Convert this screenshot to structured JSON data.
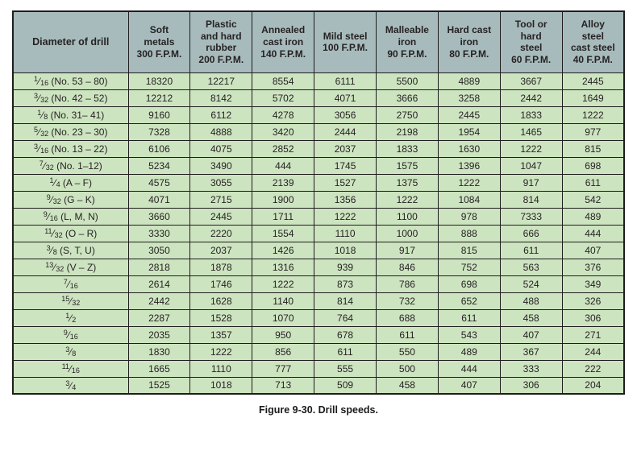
{
  "caption": "Figure 9-30. Drill speeds.",
  "colors": {
    "header_bg": "#a7bbbc",
    "row_bg": "#cde4c0",
    "border": "#1f1c1d",
    "text": "#262223",
    "page_bg": "#ffffff"
  },
  "table": {
    "columns": [
      {
        "label": "Diameter of drill"
      },
      {
        "label": "Soft\nmetals\n300 F.P.M."
      },
      {
        "label": "Plastic\nand hard\nrubber\n200 F.P.M."
      },
      {
        "label": "Annealed\ncast iron\n140 F.P.M."
      },
      {
        "label": "Mild steel\n100 F.P.M."
      },
      {
        "label": "Malleable\niron\n90 F.P.M."
      },
      {
        "label": "Hard cast\niron\n80 F.P.M."
      },
      {
        "label": "Tool or\nhard\nsteel\n60 F.P.M."
      },
      {
        "label": "Alloy\nsteel\ncast steel\n40 F.P.M."
      }
    ],
    "rows": [
      {
        "diameter": {
          "num": "1",
          "den": "16",
          "suffix": "(No. 53 – 80)"
        },
        "values": [
          "18320",
          "12217",
          "8554",
          "6111",
          "5500",
          "4889",
          "3667",
          "2445"
        ]
      },
      {
        "diameter": {
          "num": "3",
          "den": "32",
          "suffix": "(No. 42 – 52)"
        },
        "values": [
          "12212",
          "8142",
          "5702",
          "4071",
          "3666",
          "3258",
          "2442",
          "1649"
        ]
      },
      {
        "diameter": {
          "num": "1",
          "den": "8",
          "suffix": "(No. 31– 41)"
        },
        "values": [
          "9160",
          "6112",
          "4278",
          "3056",
          "2750",
          "2445",
          "1833",
          "1222"
        ]
      },
      {
        "diameter": {
          "num": "5",
          "den": "32",
          "suffix": "(No. 23 – 30)"
        },
        "values": [
          "7328",
          "4888",
          "3420",
          "2444",
          "2198",
          "1954",
          "1465",
          "977"
        ]
      },
      {
        "diameter": {
          "num": "3",
          "den": "16",
          "suffix": "(No. 13 – 22)"
        },
        "values": [
          "6106",
          "4075",
          "2852",
          "2037",
          "1833",
          "1630",
          "1222",
          "815"
        ]
      },
      {
        "diameter": {
          "num": "7",
          "den": "32",
          "suffix": "(No. 1–12)"
        },
        "values": [
          "5234",
          "3490",
          "444",
          "1745",
          "1575",
          "1396",
          "1047",
          "698"
        ]
      },
      {
        "diameter": {
          "num": "1",
          "den": "4",
          "suffix": "(A – F)"
        },
        "values": [
          "4575",
          "3055",
          "2139",
          "1527",
          "1375",
          "1222",
          "917",
          "611"
        ]
      },
      {
        "diameter": {
          "num": "9",
          "den": "32",
          "suffix": "(G – K)"
        },
        "values": [
          "4071",
          "2715",
          "1900",
          "1356",
          "1222",
          "1084",
          "814",
          "542"
        ]
      },
      {
        "diameter": {
          "num": "9",
          "den": "16",
          "suffix": "(L, M, N)"
        },
        "values": [
          "3660",
          "2445",
          "1711",
          "1222",
          "1100",
          "978",
          "7333",
          "489"
        ]
      },
      {
        "diameter": {
          "num": "11",
          "den": "32",
          "suffix": "(O – R)"
        },
        "values": [
          "3330",
          "2220",
          "1554",
          "1110",
          "1000",
          "888",
          "666",
          "444"
        ]
      },
      {
        "diameter": {
          "num": "3",
          "den": "8",
          "suffix": "(S, T, U)"
        },
        "values": [
          "3050",
          "2037",
          "1426",
          "1018",
          "917",
          "815",
          "611",
          "407"
        ]
      },
      {
        "diameter": {
          "num": "13",
          "den": "32",
          "suffix": "(V – Z)"
        },
        "values": [
          "2818",
          "1878",
          "1316",
          "939",
          "846",
          "752",
          "563",
          "376"
        ]
      },
      {
        "diameter": {
          "num": "7",
          "den": "16",
          "suffix": ""
        },
        "values": [
          "2614",
          "1746",
          "1222",
          "873",
          "786",
          "698",
          "524",
          "349"
        ]
      },
      {
        "diameter": {
          "num": "15",
          "den": "32",
          "suffix": ""
        },
        "values": [
          "2442",
          "1628",
          "1140",
          "814",
          "732",
          "652",
          "488",
          "326"
        ]
      },
      {
        "diameter": {
          "num": "1",
          "den": "2",
          "suffix": ""
        },
        "values": [
          "2287",
          "1528",
          "1070",
          "764",
          "688",
          "611",
          "458",
          "306"
        ]
      },
      {
        "diameter": {
          "num": "9",
          "den": "16",
          "suffix": ""
        },
        "values": [
          "2035",
          "1357",
          "950",
          "678",
          "611",
          "543",
          "407",
          "271"
        ]
      },
      {
        "diameter": {
          "num": "3",
          "den": "8",
          "suffix": ""
        },
        "values": [
          "1830",
          "1222",
          "856",
          "611",
          "550",
          "489",
          "367",
          "244"
        ]
      },
      {
        "diameter": {
          "num": "11",
          "den": "16",
          "suffix": ""
        },
        "values": [
          "1665",
          "1110",
          "777",
          "555",
          "500",
          "444",
          "333",
          "222"
        ]
      },
      {
        "diameter": {
          "num": "3",
          "den": "4",
          "suffix": ""
        },
        "values": [
          "1525",
          "1018",
          "713",
          "509",
          "458",
          "407",
          "306",
          "204"
        ]
      }
    ]
  }
}
